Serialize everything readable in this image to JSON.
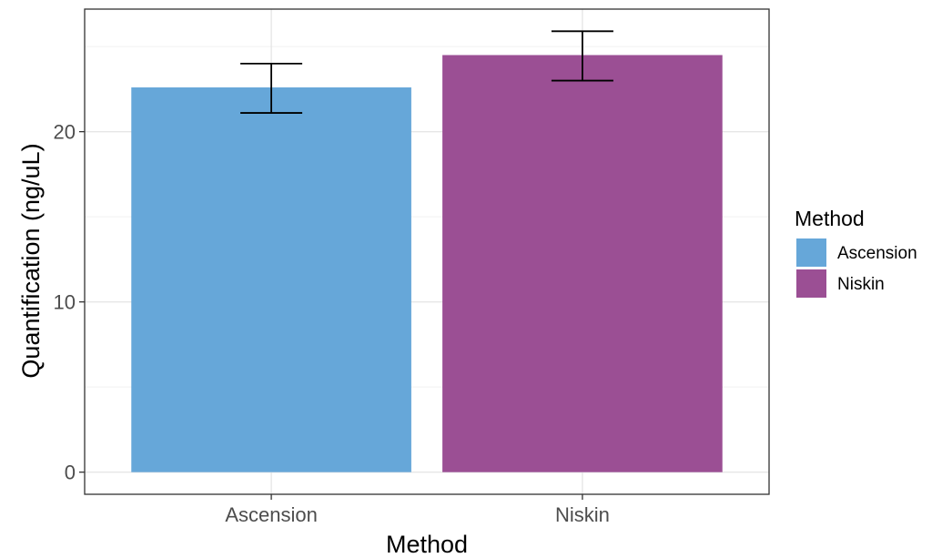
{
  "chart_data": {
    "type": "bar",
    "categories": [
      "Ascension",
      "Niskin"
    ],
    "values": [
      22.6,
      24.5
    ],
    "error_bars": [
      {
        "low": 21.1,
        "high": 24.0
      },
      {
        "low": 23.0,
        "high": 25.9
      }
    ],
    "xlabel": "Method",
    "ylabel": "Quantification (ng/uL)",
    "ylim": [
      -1.3,
      27.2
    ],
    "yticks": [
      0,
      10,
      20
    ],
    "grid": true,
    "legend": {
      "title": "Method",
      "placement": "right",
      "entries": [
        "Ascension",
        "Niskin"
      ]
    },
    "colors": [
      "#66a7d9",
      "#9b4f94"
    ]
  }
}
